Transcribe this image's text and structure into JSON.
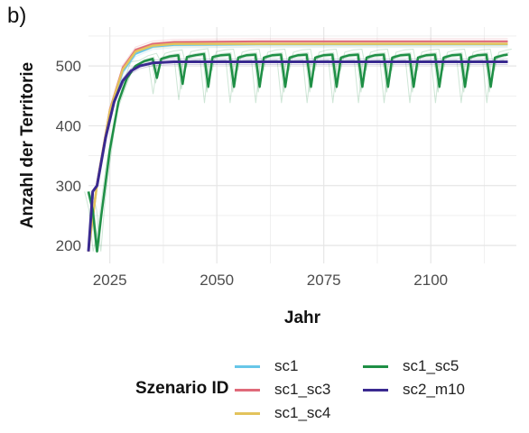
{
  "panel_label": "b)",
  "colors": {
    "sc1": "#67c6e8",
    "sc1_sc3": "#e06a7a",
    "sc1_sc4": "#e3c35c",
    "sc1_sc5": "#1e8f45",
    "sc2_m10": "#3a2a90",
    "grid": "#e6e6e6"
  },
  "chart_data": {
    "type": "line",
    "title": "",
    "xlabel": "Jahr",
    "ylabel": "Anzahl der Territorie",
    "xlim": [
      2020,
      2120
    ],
    "ylim": [
      170,
      565
    ],
    "xticks": [
      2025,
      2050,
      2075,
      2100
    ],
    "yticks": [
      200,
      300,
      400,
      500
    ],
    "grid": true,
    "legend_title": "Szenario ID",
    "legend_position": "bottom",
    "series": [
      {
        "name": "sc1",
        "x": [
          2020,
          2022,
          2025,
          2028,
          2031,
          2035,
          2040,
          2060,
          2080,
          2100,
          2118
        ],
        "y": [
          190,
          300,
          420,
          490,
          520,
          532,
          535,
          536,
          536,
          536,
          536
        ]
      },
      {
        "name": "sc1_sc3",
        "x": [
          2020,
          2022,
          2025,
          2028,
          2031,
          2035,
          2040,
          2060,
          2080,
          2100,
          2118
        ],
        "y": [
          190,
          305,
          428,
          497,
          527,
          537,
          540,
          541,
          541,
          541,
          541
        ]
      },
      {
        "name": "sc1_sc4",
        "x": [
          2020,
          2022,
          2025,
          2028,
          2031,
          2035,
          2040,
          2060,
          2080,
          2100,
          2118
        ],
        "y": [
          190,
          302,
          425,
          494,
          524,
          534,
          537,
          537,
          537,
          537,
          537
        ]
      },
      {
        "name": "sc1_sc5",
        "x": [
          2020,
          2021,
          2022,
          2023,
          2025,
          2027,
          2029,
          2031,
          2033,
          2035,
          2036,
          2037,
          2039,
          2041,
          2042,
          2043,
          2045,
          2047,
          2048,
          2049,
          2051,
          2053,
          2054,
          2055,
          2057,
          2059,
          2060,
          2061,
          2063,
          2065,
          2066,
          2067,
          2069,
          2071,
          2072,
          2073,
          2075,
          2077,
          2078,
          2079,
          2081,
          2083,
          2084,
          2085,
          2087,
          2089,
          2090,
          2091,
          2093,
          2095,
          2096,
          2097,
          2099,
          2101,
          2102,
          2103,
          2105,
          2107,
          2108,
          2109,
          2111,
          2113,
          2114,
          2115,
          2117,
          2118
        ],
        "y": [
          290,
          260,
          190,
          250,
          360,
          440,
          480,
          500,
          508,
          512,
          480,
          512,
          516,
          518,
          470,
          515,
          518,
          520,
          465,
          515,
          518,
          519,
          465,
          514,
          518,
          519,
          465,
          514,
          518,
          519,
          465,
          514,
          518,
          519,
          465,
          514,
          518,
          519,
          465,
          514,
          518,
          519,
          465,
          514,
          518,
          519,
          465,
          514,
          518,
          519,
          465,
          514,
          518,
          519,
          465,
          514,
          518,
          519,
          465,
          514,
          518,
          519,
          465,
          514,
          518,
          519
        ]
      },
      {
        "name": "sc2_m10",
        "x": [
          2020,
          2021,
          2022,
          2024,
          2026,
          2028,
          2030,
          2032,
          2035,
          2040,
          2050,
          2070,
          2090,
          2110,
          2118
        ],
        "y": [
          190,
          290,
          300,
          380,
          440,
          475,
          492,
          500,
          505,
          507,
          507,
          507,
          507,
          507,
          507
        ]
      }
    ]
  }
}
